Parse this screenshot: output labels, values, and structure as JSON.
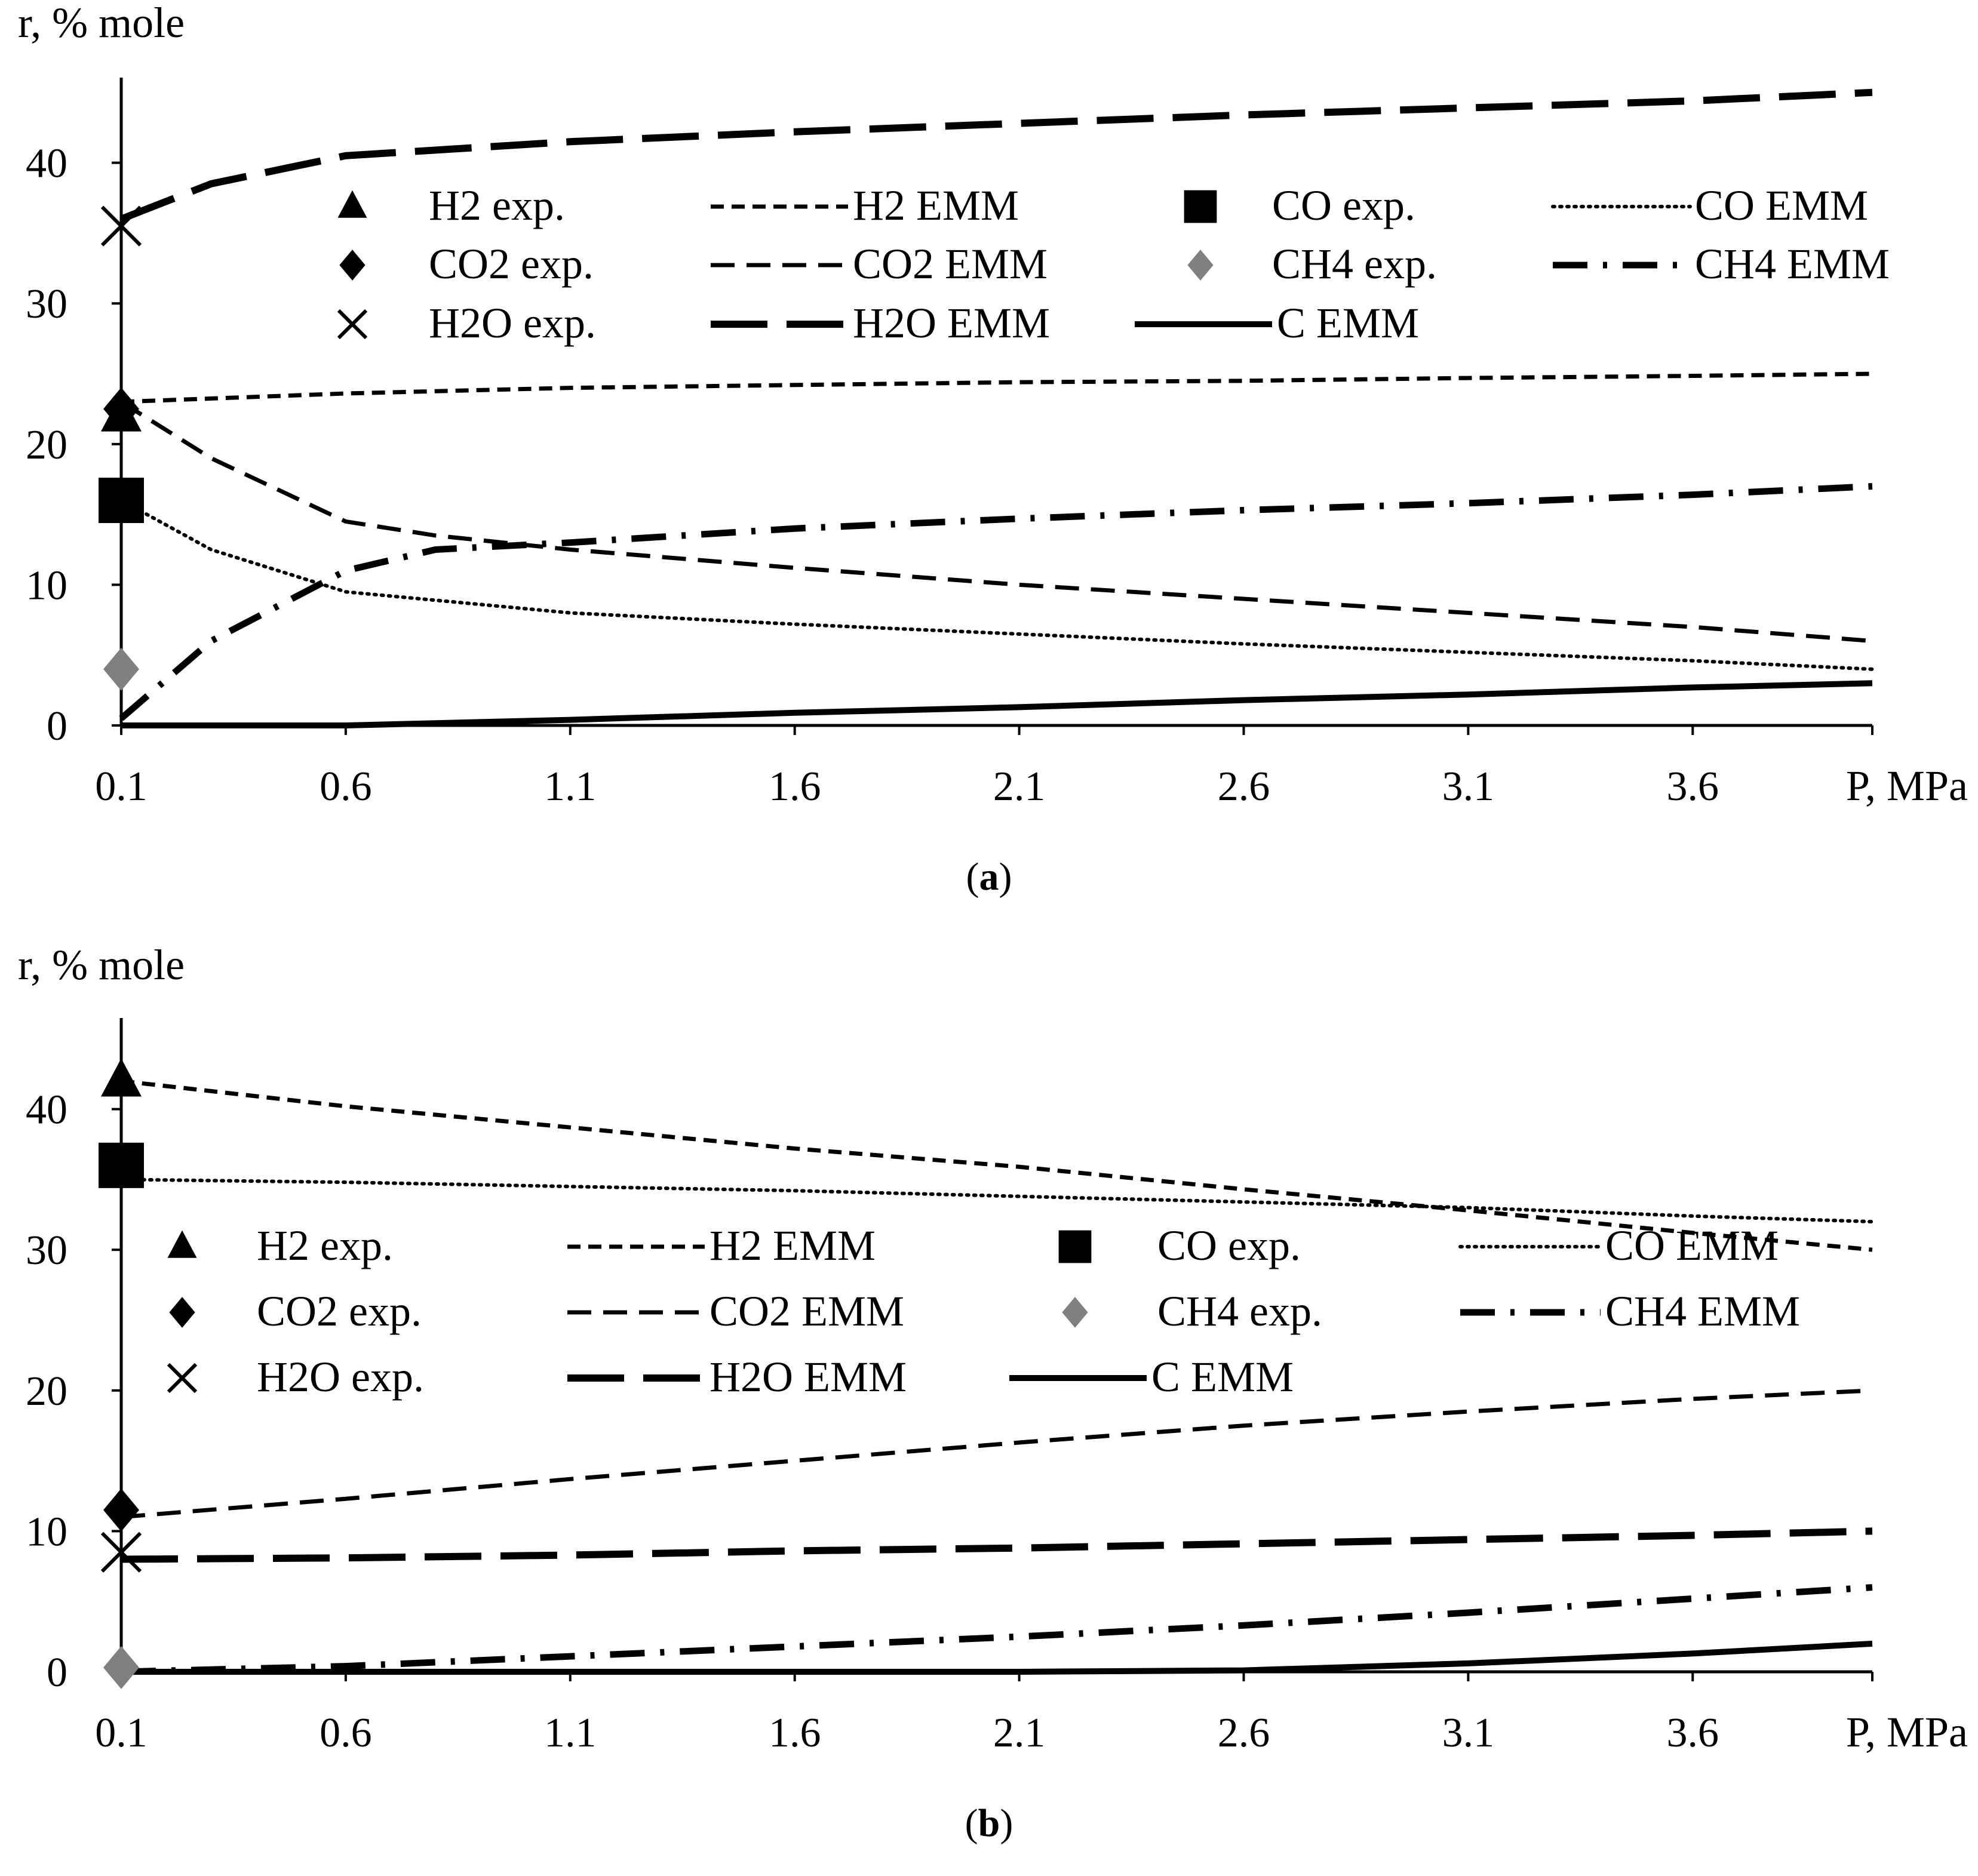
{
  "figure": {
    "panels": [
      {
        "letter": "a",
        "caption_open": "(",
        "caption_close": ")"
      },
      {
        "letter": "b",
        "caption_open": "(",
        "caption_close": ")"
      }
    ]
  },
  "colors": {
    "ink": "#000000",
    "gray_marker": "#808080"
  },
  "chart_data": [
    {
      "type": "line",
      "panel": "a",
      "title": "",
      "ylabel": "r, % mole",
      "xlabel": "P, MPa",
      "x_ticks": [
        "0.1",
        "0.6",
        "1.1",
        "1.6",
        "2.1",
        "2.6",
        "3.1",
        "3.6"
      ],
      "y_ticks": [
        "0",
        "10",
        "20",
        "30",
        "40"
      ],
      "xlim": [
        0.1,
        4.0
      ],
      "ylim": [
        0,
        45
      ],
      "grid": false,
      "legend_position": "upper-right inside plot, 3 rows x 4 columns",
      "series": [
        {
          "name": "H2 EMM",
          "style": "short-dash",
          "x": [
            0.1,
            0.6,
            1.1,
            1.6,
            2.1,
            2.6,
            3.1,
            3.6,
            4.0
          ],
          "values": [
            23.0,
            23.6,
            24.0,
            24.2,
            24.4,
            24.5,
            24.7,
            24.85,
            25.0
          ]
        },
        {
          "name": "CO EMM",
          "style": "dotted",
          "x": [
            0.1,
            0.3,
            0.6,
            1.1,
            1.6,
            2.1,
            2.6,
            3.1,
            3.6,
            4.0
          ],
          "values": [
            16.0,
            12.5,
            9.5,
            8.0,
            7.2,
            6.5,
            5.8,
            5.2,
            4.6,
            4.0
          ]
        },
        {
          "name": "CO2 EMM",
          "style": "dash",
          "x": [
            0.1,
            0.3,
            0.6,
            0.8,
            1.1,
            1.6,
            2.1,
            2.6,
            3.1,
            3.6,
            4.0
          ],
          "values": [
            23.0,
            19.0,
            14.5,
            13.5,
            12.5,
            11.2,
            10.0,
            9.0,
            8.0,
            7.0,
            6.0
          ]
        },
        {
          "name": "CH4 EMM",
          "style": "dash-dot",
          "x": [
            0.1,
            0.3,
            0.6,
            0.8,
            1.1,
            1.6,
            2.1,
            2.6,
            3.1,
            3.6,
            4.0
          ],
          "values": [
            0.5,
            6.0,
            11.0,
            12.5,
            13.0,
            14.0,
            14.7,
            15.3,
            15.8,
            16.4,
            17.0
          ]
        },
        {
          "name": "H2O EMM",
          "style": "long-dash",
          "x": [
            0.1,
            0.3,
            0.6,
            1.1,
            1.6,
            2.1,
            2.6,
            3.1,
            3.6,
            4.0
          ],
          "values": [
            36.0,
            38.5,
            40.5,
            41.5,
            42.2,
            42.8,
            43.4,
            43.9,
            44.4,
            45.0
          ]
        },
        {
          "name": "C EMM",
          "style": "solid",
          "x": [
            0.1,
            0.6,
            1.1,
            1.6,
            2.1,
            2.6,
            3.1,
            3.6,
            4.0
          ],
          "values": [
            0.0,
            0.0,
            0.4,
            0.9,
            1.3,
            1.8,
            2.2,
            2.7,
            3.0
          ]
        }
      ],
      "experimental": [
        {
          "name": "H2 exp.",
          "marker": "triangle",
          "x": 0.1,
          "value": 22.0
        },
        {
          "name": "CO exp.",
          "marker": "square",
          "x": 0.1,
          "value": 16.0
        },
        {
          "name": "CO2 exp.",
          "marker": "diamond",
          "x": 0.1,
          "value": 22.5
        },
        {
          "name": "CH4 exp.",
          "marker": "gray-diamond",
          "x": 0.1,
          "value": 4.0
        },
        {
          "name": "H2O exp.",
          "marker": "cross",
          "x": 0.1,
          "value": 35.5
        }
      ],
      "legend": {
        "row1": [
          "H2 exp.",
          "H2 EMM",
          "CO exp.",
          "CO EMM"
        ],
        "row2": [
          "CO2 exp.",
          "CO2 EMM",
          "CH4 exp.",
          "CH4 EMM"
        ],
        "row3": [
          "H2O exp.",
          "H2O EMM",
          "C EMM"
        ]
      }
    },
    {
      "type": "line",
      "panel": "b",
      "title": "",
      "ylabel": "r, % mole",
      "xlabel": "P, MPa",
      "x_ticks": [
        "0.1",
        "0.6",
        "1.1",
        "1.6",
        "2.1",
        "2.6",
        "3.1",
        "3.6"
      ],
      "y_ticks": [
        "0",
        "10",
        "20",
        "30",
        "40"
      ],
      "xlim": [
        0.1,
        4.0
      ],
      "ylim": [
        0,
        45
      ],
      "grid": false,
      "legend_position": "middle-right inside plot, 3 rows x 4 columns",
      "series": [
        {
          "name": "H2 EMM",
          "style": "short-dash",
          "x": [
            0.1,
            0.6,
            1.1,
            1.6,
            2.1,
            2.6,
            3.1,
            3.6,
            4.0
          ],
          "values": [
            42.0,
            40.2,
            38.7,
            37.2,
            35.9,
            34.3,
            32.8,
            31.2,
            30.0
          ]
        },
        {
          "name": "CO EMM",
          "style": "dotted",
          "x": [
            0.1,
            0.6,
            1.1,
            1.6,
            2.1,
            2.6,
            3.1,
            3.6,
            4.0
          ],
          "values": [
            35.0,
            34.8,
            34.5,
            34.2,
            33.8,
            33.4,
            33.0,
            32.4,
            32.0
          ]
        },
        {
          "name": "CO2 EMM",
          "style": "dash",
          "x": [
            0.1,
            0.6,
            1.1,
            1.6,
            2.1,
            2.6,
            3.1,
            3.6,
            4.0
          ],
          "values": [
            11.0,
            12.3,
            13.7,
            15.0,
            16.3,
            17.5,
            18.5,
            19.4,
            20.0
          ]
        },
        {
          "name": "CH4 EMM",
          "style": "dash-dot",
          "x": [
            0.1,
            0.6,
            1.1,
            1.6,
            2.1,
            2.6,
            3.1,
            3.6,
            4.0
          ],
          "values": [
            0.0,
            0.4,
            1.1,
            1.8,
            2.5,
            3.3,
            4.2,
            5.2,
            6.0
          ]
        },
        {
          "name": "H2O EMM",
          "style": "long-dash",
          "x": [
            0.1,
            0.6,
            1.1,
            1.6,
            2.1,
            2.6,
            3.1,
            3.6,
            4.0
          ],
          "values": [
            8.0,
            8.1,
            8.3,
            8.6,
            8.8,
            9.1,
            9.4,
            9.7,
            10.0
          ]
        },
        {
          "name": "C EMM",
          "style": "solid",
          "x": [
            0.1,
            0.6,
            1.1,
            1.6,
            2.1,
            2.6,
            3.1,
            3.6,
            4.0
          ],
          "values": [
            0.0,
            0.0,
            0.0,
            0.0,
            0.0,
            0.1,
            0.6,
            1.3,
            2.0
          ]
        }
      ],
      "experimental": [
        {
          "name": "H2 exp.",
          "marker": "triangle",
          "x": 0.1,
          "value": 42.0
        },
        {
          "name": "CO exp.",
          "marker": "square",
          "x": 0.1,
          "value": 36.0
        },
        {
          "name": "CO2 exp.",
          "marker": "diamond",
          "x": 0.1,
          "value": 11.5
        },
        {
          "name": "CH4 exp.",
          "marker": "gray-diamond",
          "x": 0.1,
          "value": 0.3
        },
        {
          "name": "H2O exp.",
          "marker": "cross",
          "x": 0.1,
          "value": 8.5
        }
      ],
      "legend": {
        "row1": [
          "H2 exp.",
          "H2 EMM",
          "CO exp.",
          "CO EMM"
        ],
        "row2": [
          "CO2 exp.",
          "CO2 EMM",
          "CH4 exp.",
          "CH4 EMM"
        ],
        "row3": [
          "H2O exp.",
          "H2O EMM",
          "C EMM"
        ]
      }
    }
  ]
}
